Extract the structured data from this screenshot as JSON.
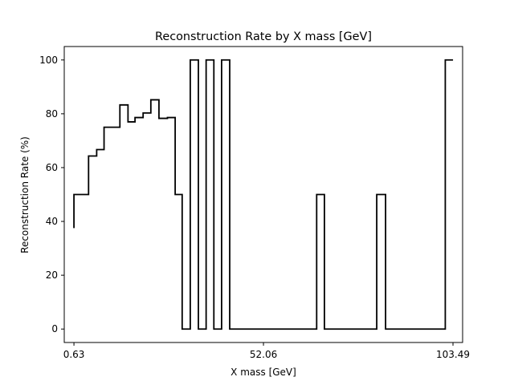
{
  "chart_data": {
    "type": "line",
    "drawstyle": "steps-post",
    "title": "Reconstruction Rate by X mass [GeV]",
    "xlabel": "X mass [GeV]",
    "ylabel": "Reconstruction Rate (%)",
    "xlim": [
      -2.0,
      106.1
    ],
    "ylim": [
      -5,
      105
    ],
    "xticks": [
      0.63,
      52.06,
      103.49
    ],
    "xtick_labels": [
      "0.63",
      "52.06",
      "103.49"
    ],
    "yticks": [
      0,
      20,
      40,
      60,
      80,
      100
    ],
    "ytick_labels": [
      "0",
      "20",
      "40",
      "60",
      "80",
      "100"
    ],
    "grid": false,
    "color": "#000000",
    "series": [
      {
        "x": [
          0.63,
          0.63,
          4.6,
          6.8,
          8.8,
          11.0,
          13.1,
          15.3,
          17.2,
          19.4,
          21.5,
          23.7,
          26.0,
          28.1,
          30.0,
          32.2,
          34.4,
          36.5,
          38.6,
          40.7,
          42.9,
          45.0,
          47.1,
          66.5,
          68.6,
          82.8,
          85.2,
          101.4,
          103.5
        ],
        "y": [
          37.5,
          50,
          64.3,
          66.7,
          75,
          75,
          83.3,
          77,
          78.6,
          80.3,
          85.2,
          78.3,
          78.6,
          50,
          0,
          100,
          0,
          100,
          0,
          100,
          0,
          0,
          0,
          50,
          0,
          50,
          0,
          100,
          100
        ]
      }
    ]
  }
}
